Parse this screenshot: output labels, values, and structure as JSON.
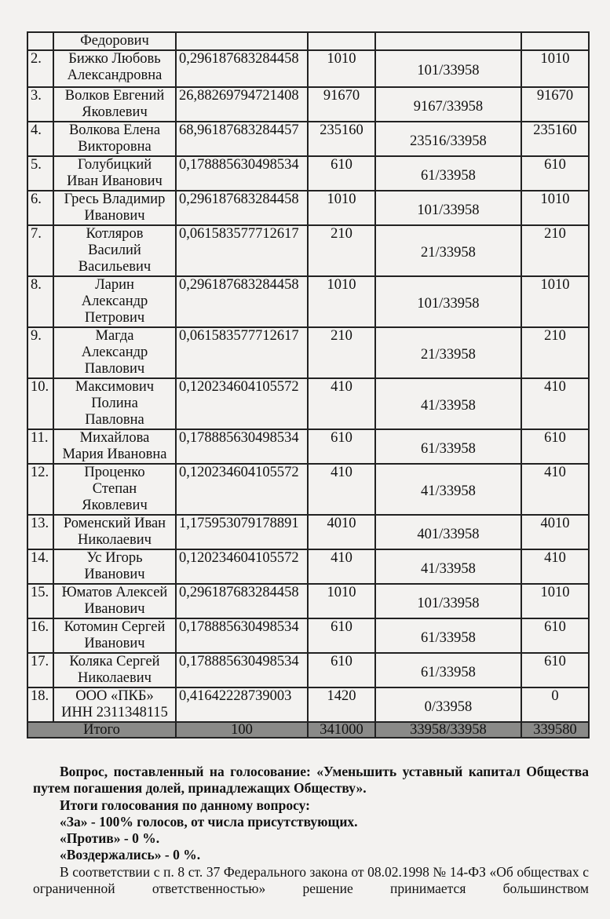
{
  "table": {
    "rows": [
      {
        "num": "",
        "name": "Федорович",
        "pct": "",
        "nominal": "",
        "fraction": "",
        "votes": "",
        "h": 22
      },
      {
        "num": "2.",
        "name": "Бижко Любовь\nАлександровна",
        "pct": "0,296187683284458",
        "nominal": "1010",
        "fraction": "101/33958",
        "votes": "1010",
        "h": 47
      },
      {
        "num": "3.",
        "name": "Волков Евгений\nЯковлевич",
        "pct": "26,88269794721408",
        "nominal": "91670",
        "fraction": "9167/33958",
        "votes": "91670",
        "h": 44
      },
      {
        "num": "4.",
        "name": "Волкова Елена\nВикторовна",
        "pct": "68,96187683284457",
        "nominal": "235160",
        "fraction": "23516/33958",
        "votes": "235160",
        "h": 44
      },
      {
        "num": "5.",
        "name": "Голубицкий\nИван Иванович",
        "pct": "0,178885630498534",
        "nominal": "610",
        "fraction": "61/33958",
        "votes": "610",
        "h": 44
      },
      {
        "num": "6.",
        "name": "Гресь Владимир\nИванович",
        "pct": "0,296187683284458",
        "nominal": "1010",
        "fraction": "101/33958",
        "votes": "1010",
        "h": 44
      },
      {
        "num": "7.",
        "name": "Котляров\nВасилий\nВасильевич",
        "pct": "0,061583577712617",
        "nominal": "210",
        "fraction": "21/33958",
        "votes": "210",
        "h": 63
      },
      {
        "num": "8.",
        "name": "Ларин\nАлександр\nПетрович",
        "pct": "0,296187683284458",
        "nominal": "1010",
        "fraction": "101/33958",
        "votes": "1010",
        "h": 64
      },
      {
        "num": "9.",
        "name": "Магда\nАлександр\nПавлович",
        "pct": "0,061583577712617",
        "nominal": "210",
        "fraction": "21/33958",
        "votes": "210",
        "h": 64
      },
      {
        "num": "10.",
        "name": "Максимович\nПолина\nПавловна",
        "pct": "0,120234604105572",
        "nominal": "410",
        "fraction": "41/33958",
        "votes": "410",
        "h": 65
      },
      {
        "num": "11.",
        "name": "Михайлова\nМария Ивановна",
        "pct": "0,178885630498534",
        "nominal": "610",
        "fraction": "61/33958",
        "votes": "610",
        "h": 44
      },
      {
        "num": "12.",
        "name": "Проценко\nСтепан\nЯковлевич",
        "pct": "0,120234604105572",
        "nominal": "410",
        "fraction": "41/33958",
        "votes": "410",
        "h": 65
      },
      {
        "num": "13.",
        "name": "Роменский Иван\nНиколаевич",
        "pct": "1,175953079178891",
        "nominal": "4010",
        "fraction": "401/33958",
        "votes": "4010",
        "h": 44
      },
      {
        "num": "14.",
        "name": "Ус Игорь\nИванович",
        "pct": "0,120234604105572",
        "nominal": "410",
        "fraction": "41/33958",
        "votes": "410",
        "h": 44
      },
      {
        "num": "15.",
        "name": "Юматов Алексей\nИванович",
        "pct": "0,296187683284458",
        "nominal": "1010",
        "fraction": "101/33958",
        "votes": "1010",
        "h": 44
      },
      {
        "num": "16.",
        "name": "Котомин Сергей\nИванович",
        "pct": "0,178885630498534",
        "nominal": "610",
        "fraction": "61/33958",
        "votes": "610",
        "h": 42
      },
      {
        "num": "17.",
        "name": "Коляка Сергей\nНиколаевич",
        "pct": "0,178885630498534",
        "nominal": "610",
        "fraction": "61/33958",
        "votes": "610",
        "h": 43
      },
      {
        "num": "18.",
        "name": "ООО «ПКБ»\nИНН 2311348115",
        "pct": "0,41642228739003",
        "nominal": "1420",
        "fraction": "0/33958",
        "votes": "0",
        "h": 40
      }
    ],
    "total": {
      "label": "Итого",
      "pct": "100",
      "nominal": "341000",
      "fraction": "33958/33958",
      "votes": "339580"
    }
  },
  "text": {
    "question": "Вопрос, поставленный на голосование: «Уменьшить уставный капитал Общества путем погашения долей, принадлежащих Обществу».",
    "results_heading": "Итоги голосования по данному вопросу:",
    "for": "«За» - 100% голосов, от числа присутствующих.",
    "against": "«Против» - 0 %.",
    "abstained": "«Воздержались» - 0 %.",
    "law": "В соответствии с п. 8 ст. 37 Федерального закона от 08.02.1998 № 14-ФЗ «Об обществах с ограниченной ответственностью» решение принимается большинством"
  }
}
